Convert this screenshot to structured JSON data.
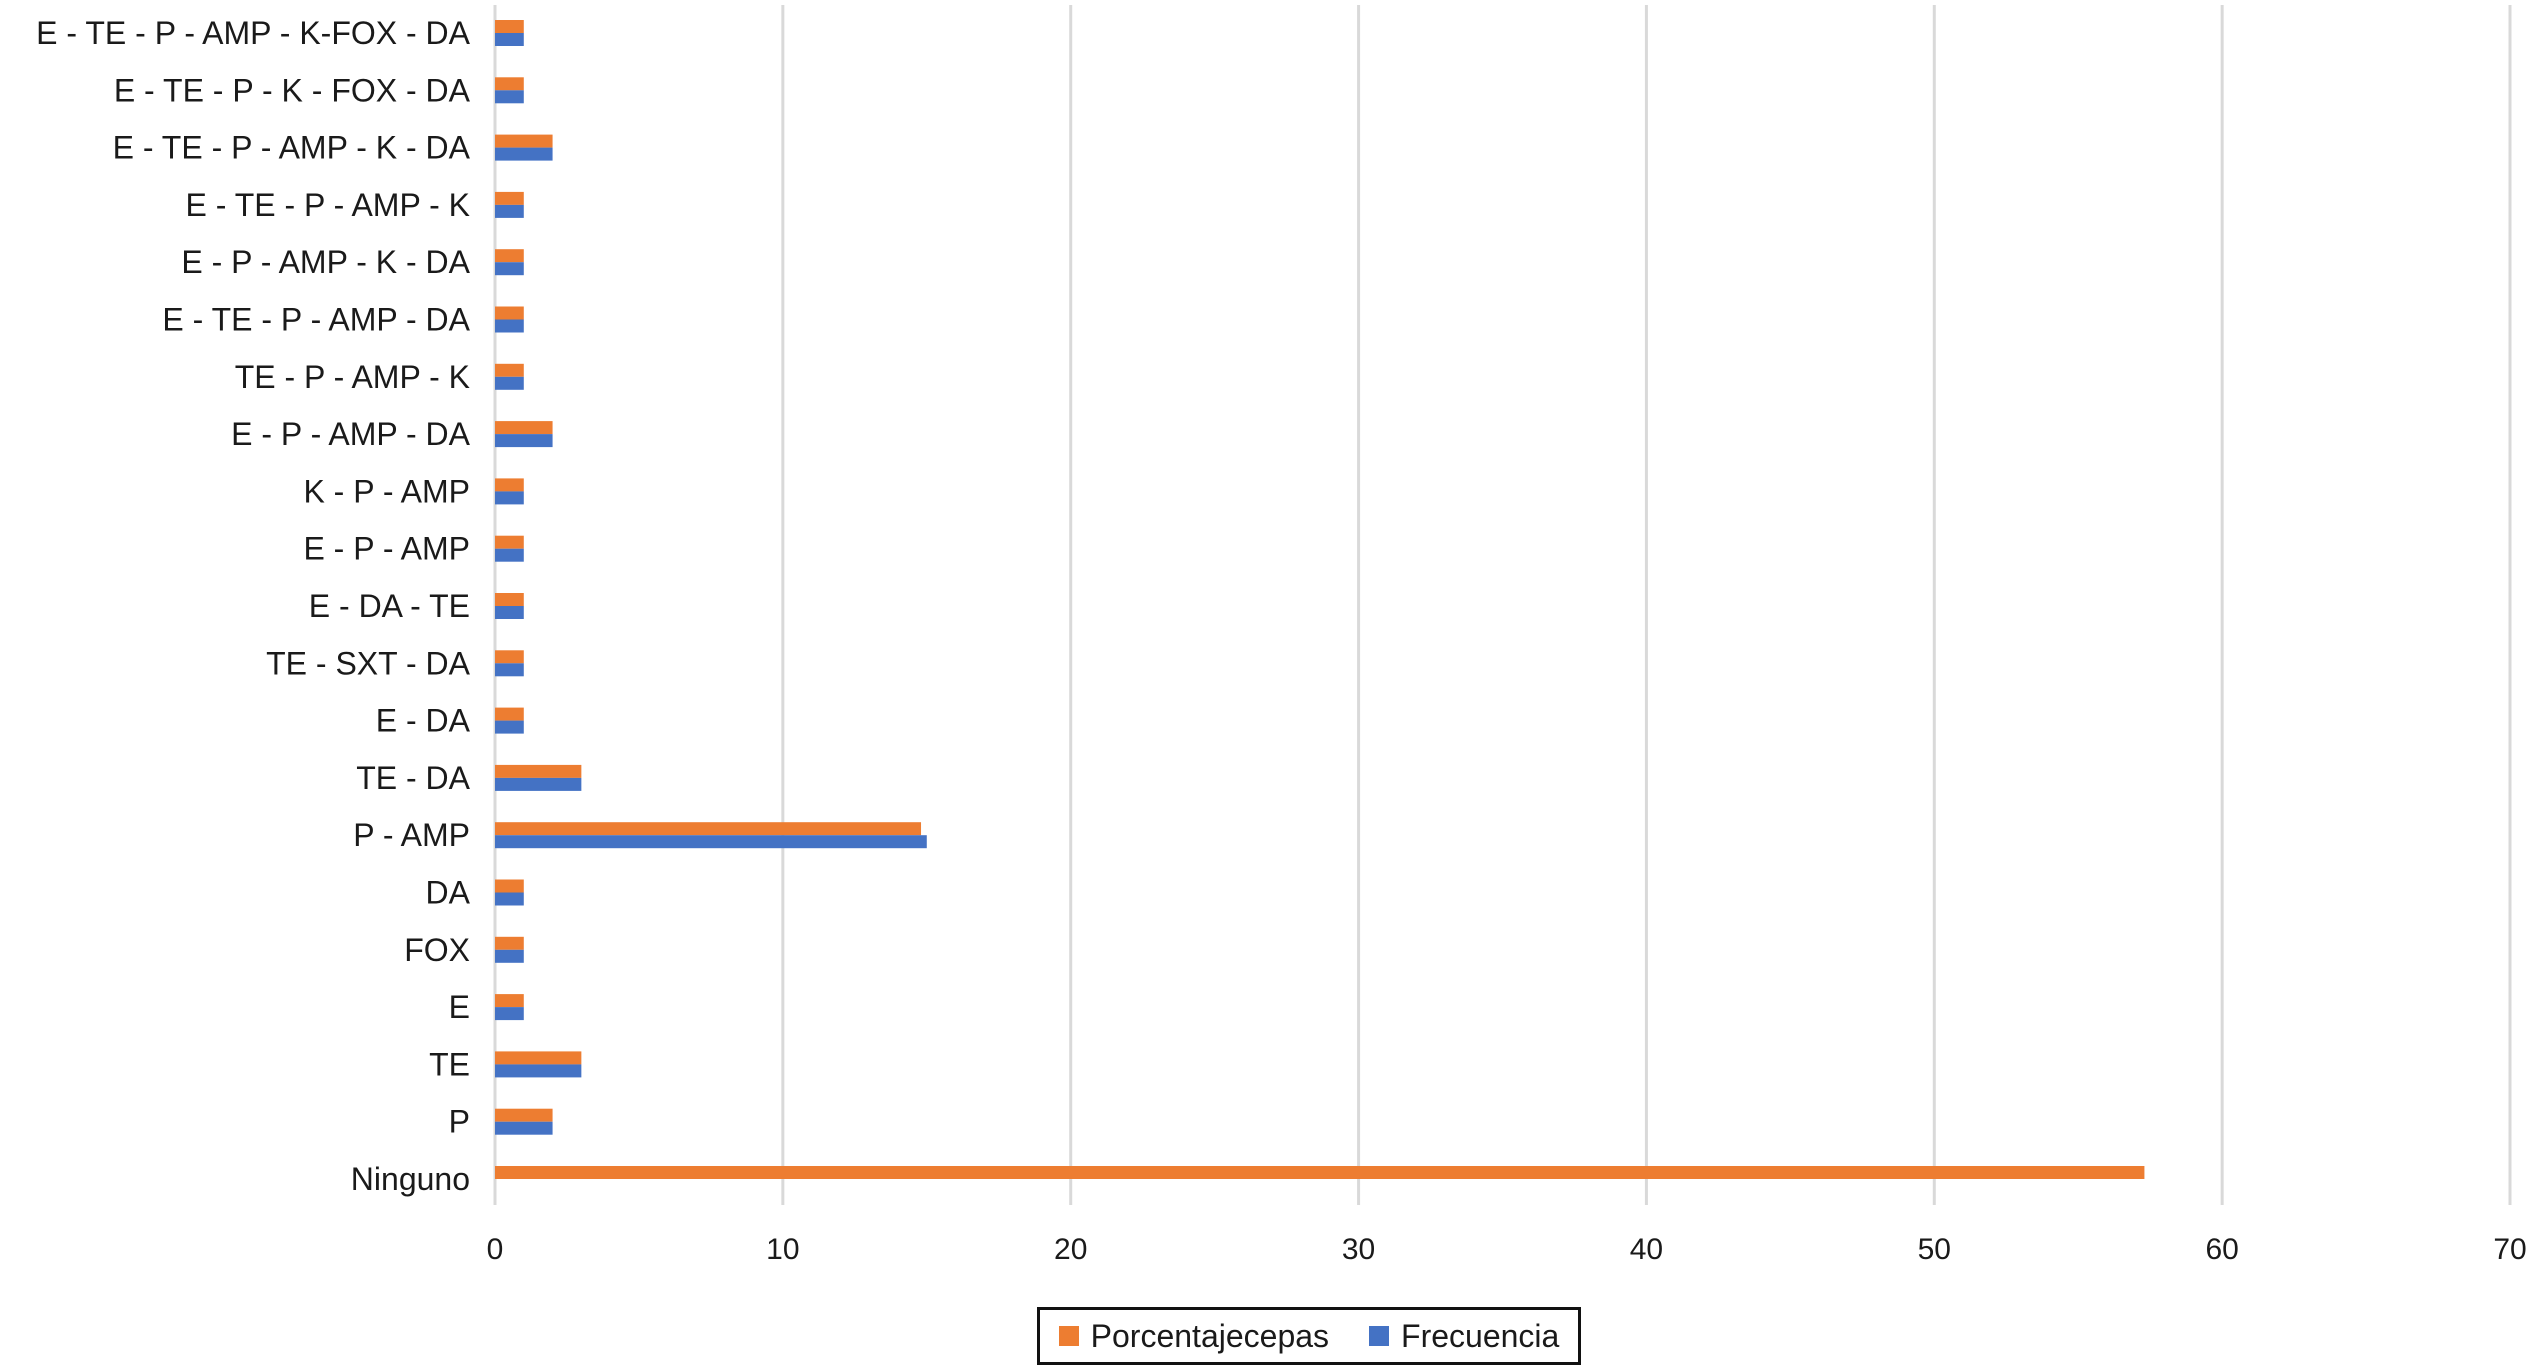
{
  "chart_data": {
    "type": "bar",
    "orientation": "horizontal",
    "categories": [
      "Ninguno",
      "P",
      "TE",
      "E",
      "FOX",
      "DA",
      "P - AMP",
      "TE - DA",
      "E - DA",
      "TE - SXT - DA",
      "E - DA - TE",
      "E - P - AMP",
      "K - P - AMP",
      "E - P - AMP - DA",
      "TE - P - AMP - K",
      "E - TE - P - AMP - DA",
      "E - P - AMP - K - DA",
      "E - TE - P - AMP - K",
      "E - TE - P - AMP - K - DA",
      "E - TE - P - K - FOX - DA",
      "E - TE - P - AMP - K-FOX - DA"
    ],
    "series": [
      {
        "name": "Porcentajecepas",
        "color": "#ED7D31",
        "values": [
          57.3,
          2,
          3,
          1,
          1,
          1,
          14.8,
          3,
          1,
          1,
          1,
          1,
          1,
          2,
          1,
          1,
          1,
          1,
          2,
          1,
          1
        ]
      },
      {
        "name": "Frecuencia",
        "color": "#4472C4",
        "values": [
          0,
          2,
          3,
          1,
          1,
          1,
          15,
          3,
          1,
          1,
          1,
          1,
          1,
          2,
          1,
          1,
          1,
          1,
          2,
          1,
          1
        ]
      }
    ],
    "xlim": [
      0,
      70
    ],
    "xticks": [
      0,
      10,
      20,
      30,
      40,
      50,
      60,
      70
    ],
    "grid": "vertical",
    "legend_position": "bottom"
  }
}
